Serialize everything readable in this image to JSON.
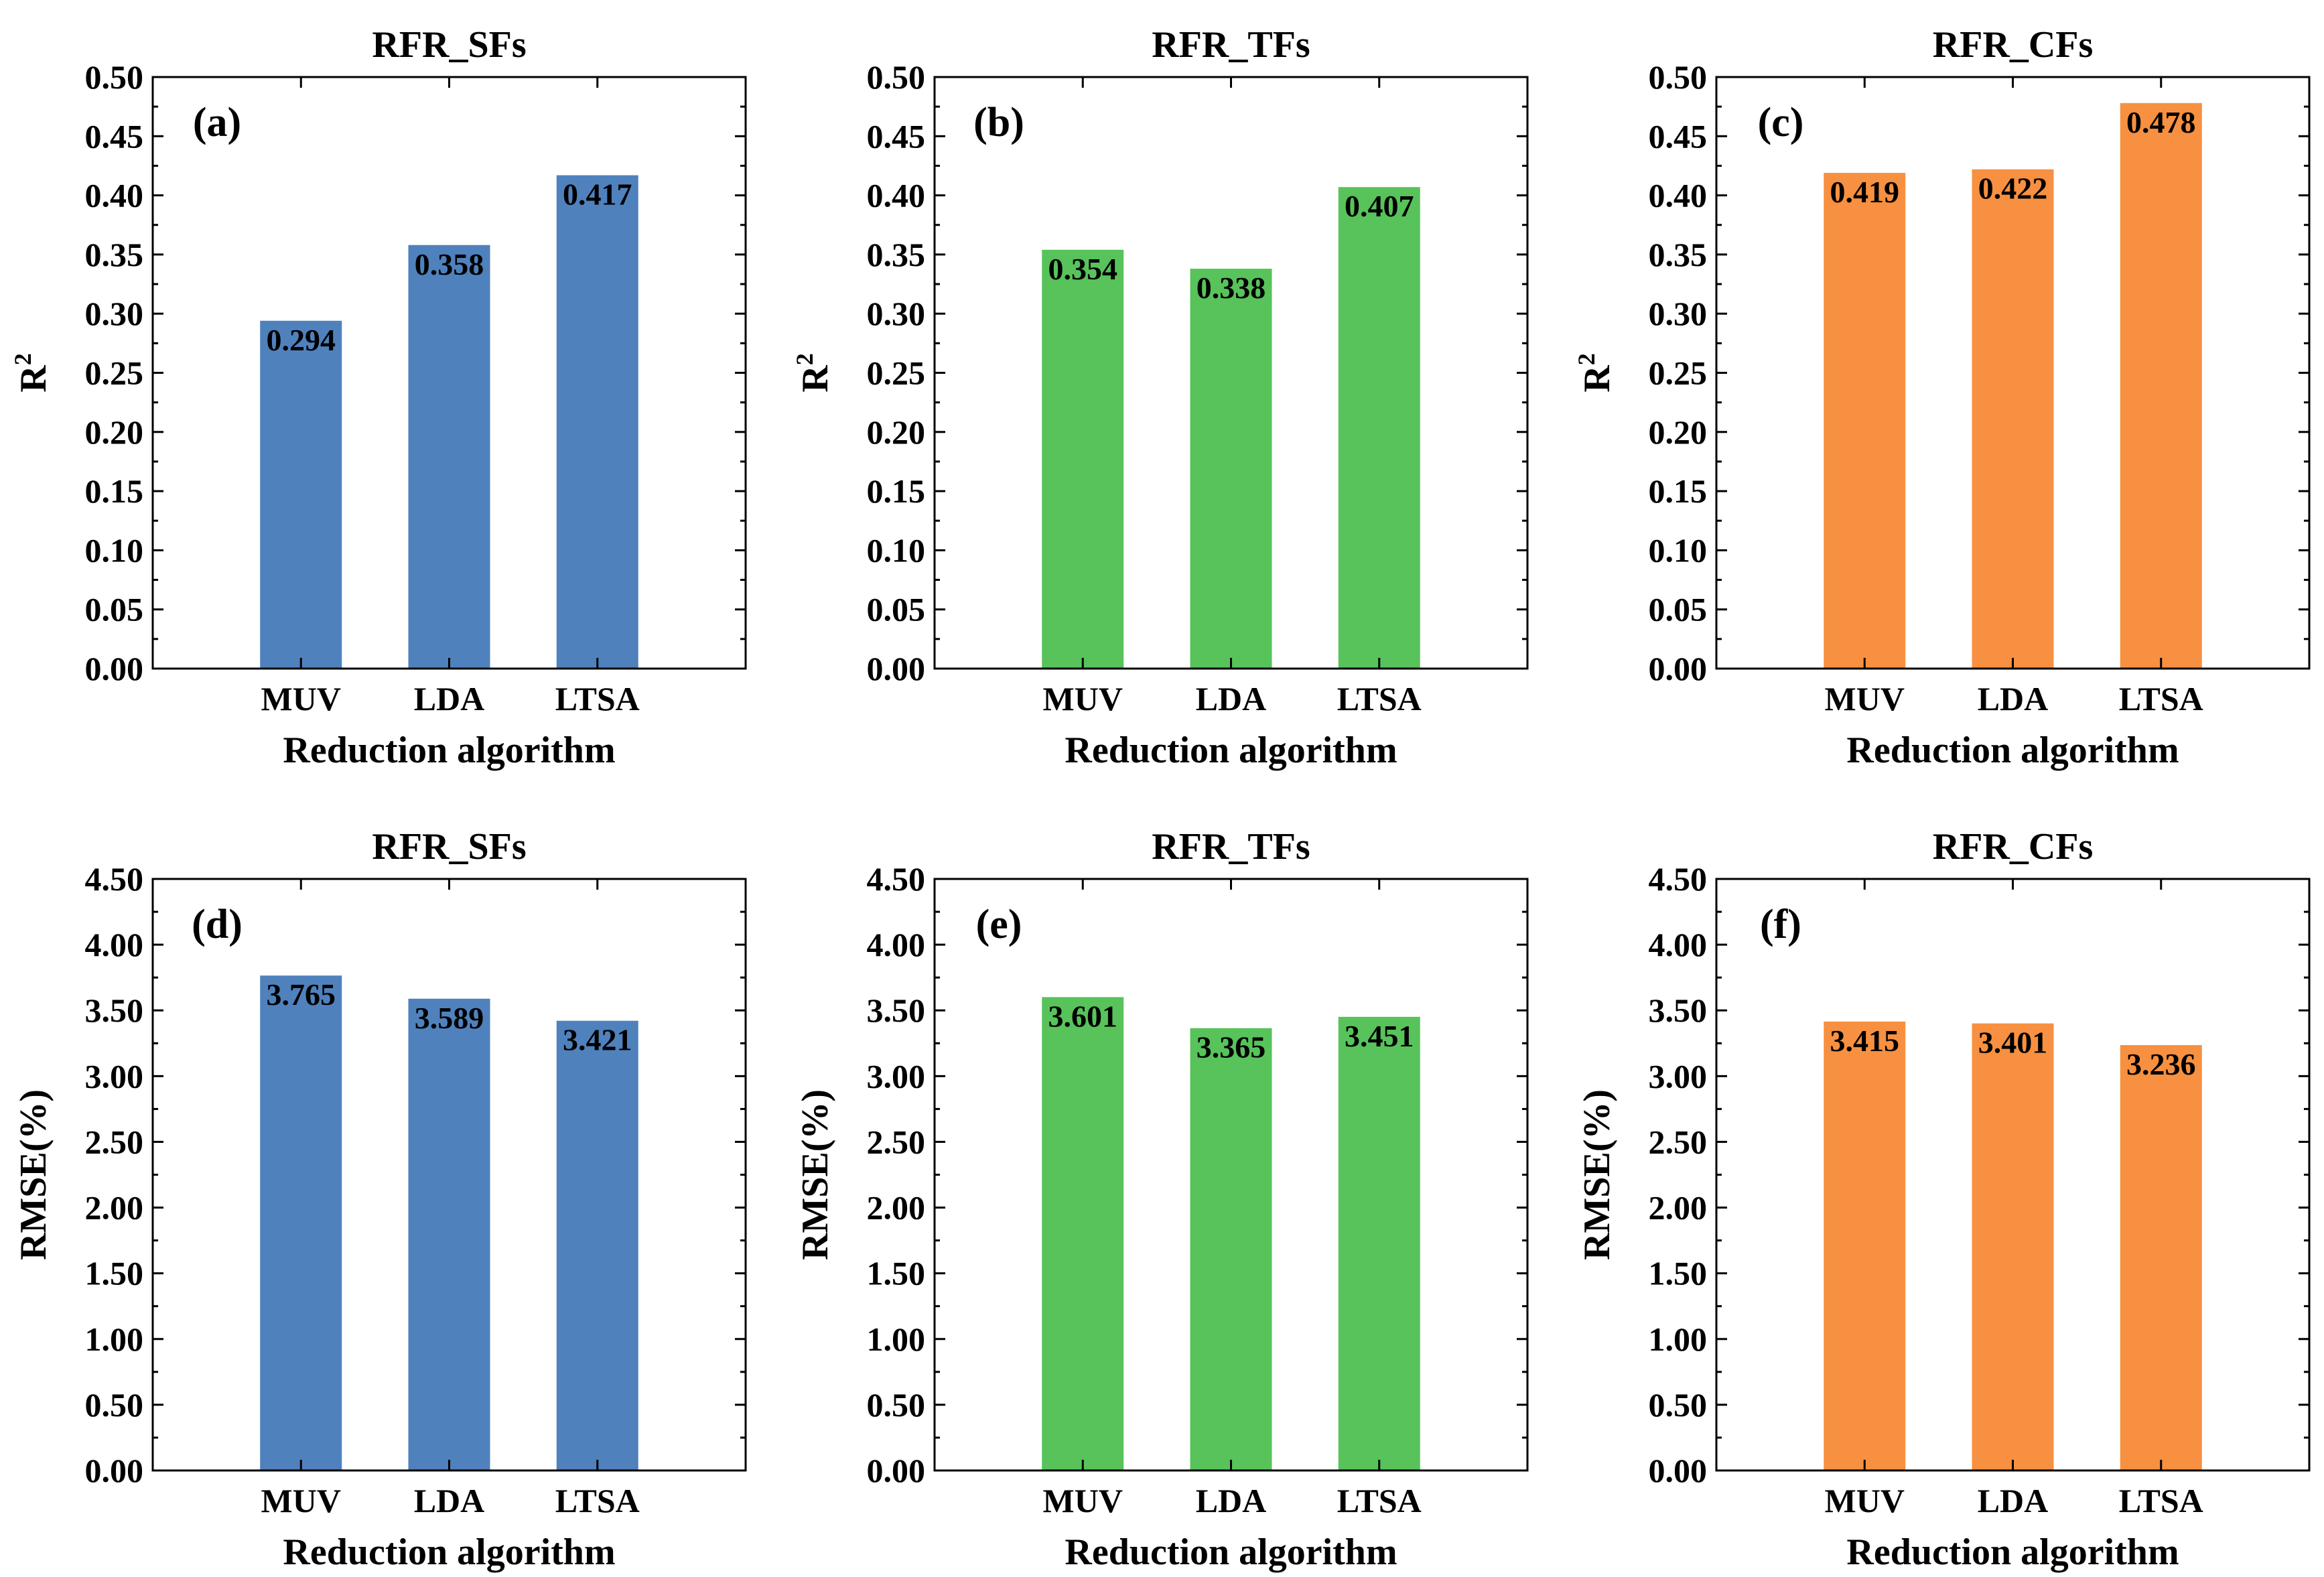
{
  "chart_data": [
    {
      "type": "bar",
      "panel": "(a)",
      "title": "RFR_SFs",
      "categories": [
        "MUV",
        "LDA",
        "LTSA"
      ],
      "values": [
        0.294,
        0.358,
        0.417
      ],
      "data_labels": [
        "0.294",
        "0.358",
        "0.417"
      ],
      "xlabel": "Reduction algorithm",
      "ylabel_base": "R",
      "ylabel_sup": "2",
      "ylim": [
        0,
        0.5
      ],
      "ytick_labels": [
        "0.00",
        "0.05",
        "0.10",
        "0.15",
        "0.20",
        "0.25",
        "0.30",
        "0.35",
        "0.40",
        "0.45",
        "0.50"
      ],
      "bar_color": "#4f81bd"
    },
    {
      "type": "bar",
      "panel": "(b)",
      "title": "RFR_TFs",
      "categories": [
        "MUV",
        "LDA",
        "LTSA"
      ],
      "values": [
        0.354,
        0.338,
        0.407
      ],
      "data_labels": [
        "0.354",
        "0.338",
        "0.407"
      ],
      "xlabel": "Reduction algorithm",
      "ylabel_base": "R",
      "ylabel_sup": "2",
      "ylim": [
        0,
        0.5
      ],
      "ytick_labels": [
        "0.00",
        "0.05",
        "0.10",
        "0.15",
        "0.20",
        "0.25",
        "0.30",
        "0.35",
        "0.40",
        "0.45",
        "0.50"
      ],
      "bar_color": "#57c35a"
    },
    {
      "type": "bar",
      "panel": "(c)",
      "title": "RFR_CFs",
      "categories": [
        "MUV",
        "LDA",
        "LTSA"
      ],
      "values": [
        0.419,
        0.422,
        0.478
      ],
      "data_labels": [
        "0.419",
        "0.422",
        "0.478"
      ],
      "xlabel": "Reduction algorithm",
      "ylabel_base": "R",
      "ylabel_sup": "2",
      "ylim": [
        0,
        0.5
      ],
      "ytick_labels": [
        "0.00",
        "0.05",
        "0.10",
        "0.15",
        "0.20",
        "0.25",
        "0.30",
        "0.35",
        "0.40",
        "0.45",
        "0.50"
      ],
      "bar_color": "#f79040"
    },
    {
      "type": "bar",
      "panel": "(d)",
      "title": "RFR_SFs",
      "categories": [
        "MUV",
        "LDA",
        "LTSA"
      ],
      "values": [
        3.765,
        3.589,
        3.421
      ],
      "data_labels": [
        "3.765",
        "3.589",
        "3.421"
      ],
      "xlabel": "Reduction algorithm",
      "ylabel_base": "RMSE(%)",
      "ylabel_sup": "",
      "ylim": [
        0,
        4.5
      ],
      "ytick_labels": [
        "0.00",
        "0.50",
        "1.00",
        "1.50",
        "2.00",
        "2.50",
        "3.00",
        "3.50",
        "4.00",
        "4.50"
      ],
      "bar_color": "#4f81bd"
    },
    {
      "type": "bar",
      "panel": "(e)",
      "title": "RFR_TFs",
      "categories": [
        "MUV",
        "LDA",
        "LTSA"
      ],
      "values": [
        3.601,
        3.365,
        3.451
      ],
      "data_labels": [
        "3.601",
        "3.365",
        "3.451"
      ],
      "xlabel": "Reduction algorithm",
      "ylabel_base": "RMSE(%)",
      "ylabel_sup": "",
      "ylim": [
        0,
        4.5
      ],
      "ytick_labels": [
        "0.00",
        "0.50",
        "1.00",
        "1.50",
        "2.00",
        "2.50",
        "3.00",
        "3.50",
        "4.00",
        "4.50"
      ],
      "bar_color": "#57c35a"
    },
    {
      "type": "bar",
      "panel": "(f)",
      "title": "RFR_CFs",
      "categories": [
        "MUV",
        "LDA",
        "LTSA"
      ],
      "values": [
        3.415,
        3.401,
        3.236
      ],
      "data_labels": [
        "3.415",
        "3.401",
        "3.236"
      ],
      "xlabel": "Reduction algorithm",
      "ylabel_base": "RMSE(%)",
      "ylabel_sup": "",
      "ylim": [
        0,
        4.5
      ],
      "ytick_labels": [
        "0.00",
        "0.50",
        "1.00",
        "1.50",
        "2.00",
        "2.50",
        "3.00",
        "3.50",
        "4.00",
        "4.50"
      ],
      "bar_color": "#f79040"
    }
  ]
}
